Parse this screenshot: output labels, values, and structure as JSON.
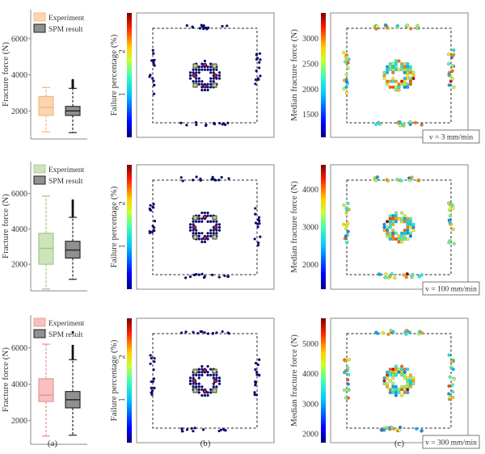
{
  "panel_labels": [
    "(a)",
    "(b)",
    "(c)"
  ],
  "colors": {
    "experiment_fill": [
      "#fcd5b0",
      "#cfe3b8",
      "#f8c0c0"
    ],
    "experiment_stroke": [
      "#f0b47c",
      "#9ec48a",
      "#e59090"
    ],
    "spm_fill": "#909090",
    "spm_stroke": "#222222",
    "axis": "#888888"
  },
  "chart_data": [
    {
      "type": "box",
      "panel": "a",
      "row": 1,
      "ylabel": "Fracture force (N)",
      "yticks": [
        2000,
        4000,
        6000
      ],
      "ylim": [
        450,
        7600
      ],
      "legend": [
        "Experiment",
        "SPM result"
      ],
      "legend_position": "top-left",
      "series": [
        {
          "name": "Experiment",
          "min": 850,
          "q1": 1750,
          "median": 2200,
          "q3": 2800,
          "max": 3300,
          "outliers": []
        },
        {
          "name": "SPM result",
          "min": 800,
          "q1": 1750,
          "median": 2000,
          "q3": 2250,
          "max": 3250,
          "outliers": [
            3300,
            3350,
            3400,
            3450,
            3500,
            3550,
            3600,
            3650,
            3700
          ]
        }
      ]
    },
    {
      "type": "box",
      "panel": "a",
      "row": 2,
      "ylabel": "Fracture force (N)",
      "yticks": [
        2000,
        4000,
        6000
      ],
      "ylim": [
        500,
        7800
      ],
      "legend": [
        "Experiment",
        "SPM result"
      ],
      "legend_position": "top-left",
      "series": [
        {
          "name": "Experiment",
          "min": 600,
          "q1": 2000,
          "median": 2900,
          "q3": 3750,
          "max": 5850,
          "outliers": []
        },
        {
          "name": "SPM result",
          "min": 1150,
          "q1": 2350,
          "median": 2800,
          "q3": 3300,
          "max": 4650,
          "outliers": [
            4700,
            4800,
            4900,
            5000,
            5100,
            5200,
            5300,
            5400,
            5500,
            5600
          ]
        }
      ]
    },
    {
      "type": "box",
      "panel": "a",
      "row": 3,
      "ylabel": "Fracture force (N)",
      "yticks": [
        2000,
        4000,
        6000
      ],
      "ylim": [
        700,
        7800
      ],
      "legend": [
        "Experiment",
        "SPM result"
      ],
      "legend_position": "top-left",
      "series": [
        {
          "name": "Experiment",
          "min": 1150,
          "q1": 3050,
          "median": 3400,
          "q3": 4300,
          "max": 6200,
          "outliers": []
        },
        {
          "name": "SPM result",
          "min": 1200,
          "q1": 2700,
          "median": 3150,
          "q3": 3600,
          "max": 5350,
          "outliers": [
            5400,
            5500,
            5600,
            5700,
            5800,
            5900,
            6000,
            6100,
            6850
          ]
        }
      ]
    },
    {
      "type": "scatter",
      "panel": "b",
      "row": 1,
      "colorbar_label": "Failure percentage (%)",
      "colorbar_ticks": [
        1,
        2
      ],
      "colorbar_range": [
        0,
        2.9
      ],
      "colormap": "jet"
    },
    {
      "type": "scatter",
      "panel": "b",
      "row": 2,
      "colorbar_label": "Failure percentage (%)",
      "colorbar_ticks": [
        1,
        2
      ],
      "colorbar_range": [
        0,
        2.9
      ],
      "colormap": "jet"
    },
    {
      "type": "scatter",
      "panel": "b",
      "row": 3,
      "colorbar_label": "Failure percentage (%)",
      "colorbar_ticks": [
        1,
        2
      ],
      "colorbar_range": [
        0,
        2.9
      ],
      "colormap": "jet"
    },
    {
      "type": "scatter",
      "panel": "c",
      "row": 1,
      "colorbar_label": "Median fracture force (N)",
      "colorbar_ticks": [
        1500,
        2000,
        2500,
        3000
      ],
      "colorbar_range": [
        1050,
        3500
      ],
      "colormap": "jet",
      "annotation": "v = 3 mm/min"
    },
    {
      "type": "scatter",
      "panel": "c",
      "row": 2,
      "colorbar_label": "Median fracture force (N)",
      "colorbar_ticks": [
        2000,
        3000,
        4000
      ],
      "colorbar_range": [
        1350,
        4650
      ],
      "colormap": "jet",
      "annotation": "v = 100 mm/min"
    },
    {
      "type": "scatter",
      "panel": "c",
      "row": 3,
      "colorbar_label": "Median fracture force (N)",
      "colorbar_ticks": [
        2000,
        3000,
        4000,
        5000
      ],
      "colorbar_range": [
        1700,
        5850
      ],
      "colormap": "jet",
      "annotation": "v = 300 mm/min"
    }
  ]
}
